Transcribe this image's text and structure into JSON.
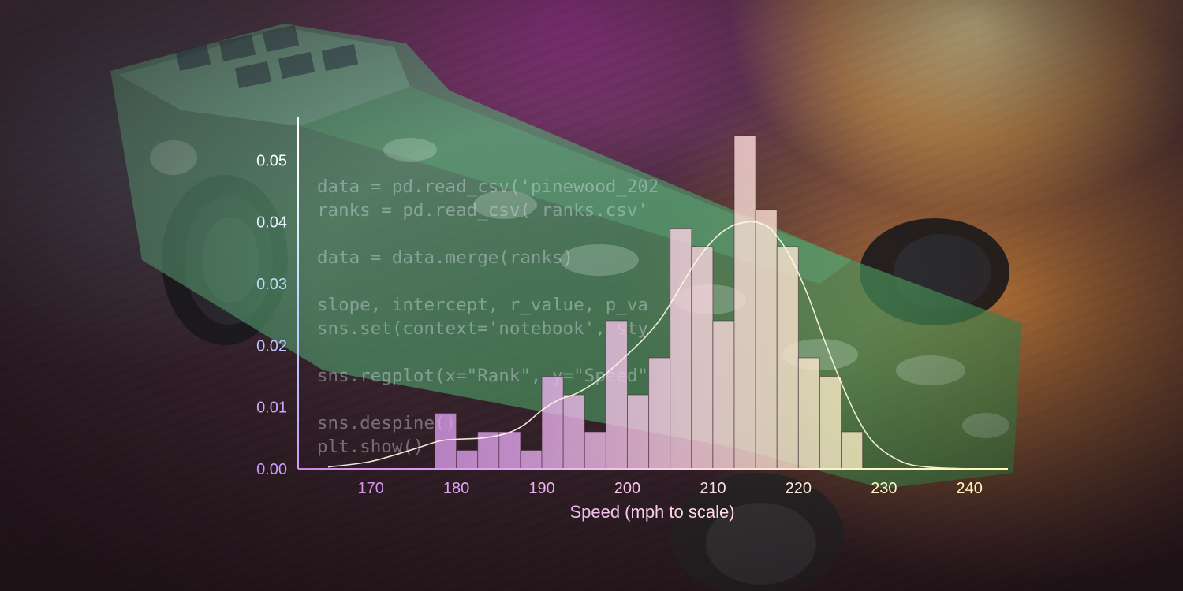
{
  "code_lines": [
    "data = pd.read_csv('pinewood_202",
    "ranks = pd.read_csv('ranks.csv'",
    "",
    "data = data.merge(ranks)",
    "",
    "slope, intercept, r_value, p_va",
    "sns.set(context='notebook', sty",
    "",
    "sns.regplot(x=\"Rank\", y=\"Speed\"",
    "",
    "sns.despine()",
    "plt.show()"
  ],
  "chart_data": {
    "type": "bar",
    "xlabel": "Speed (mph to scale)",
    "ylabel": "",
    "xlim": [
      161.5,
      244.5
    ],
    "ylim": [
      0,
      0.056
    ],
    "xticks": [
      170,
      180,
      190,
      200,
      210,
      220,
      230,
      240
    ],
    "xtick_labels": [
      "170",
      "180",
      "190",
      "200",
      "210",
      "220",
      "230",
      "240"
    ],
    "yticks": [
      0.0,
      0.01,
      0.02,
      0.03,
      0.04,
      0.05
    ],
    "ytick_labels": [
      "0.00",
      "0.01",
      "0.02",
      "0.03",
      "0.04",
      "0.05"
    ],
    "bins": [
      {
        "x0": 177.5,
        "x1": 180.0,
        "value": 0.009
      },
      {
        "x0": 180.0,
        "x1": 182.5,
        "value": 0.003
      },
      {
        "x0": 182.5,
        "x1": 185.0,
        "value": 0.006
      },
      {
        "x0": 185.0,
        "x1": 187.5,
        "value": 0.006
      },
      {
        "x0": 187.5,
        "x1": 190.0,
        "value": 0.003
      },
      {
        "x0": 190.0,
        "x1": 192.5,
        "value": 0.015
      },
      {
        "x0": 192.5,
        "x1": 195.0,
        "value": 0.012
      },
      {
        "x0": 195.0,
        "x1": 197.5,
        "value": 0.006
      },
      {
        "x0": 197.5,
        "x1": 200.0,
        "value": 0.024
      },
      {
        "x0": 200.0,
        "x1": 202.5,
        "value": 0.012
      },
      {
        "x0": 202.5,
        "x1": 205.0,
        "value": 0.018
      },
      {
        "x0": 205.0,
        "x1": 207.5,
        "value": 0.039
      },
      {
        "x0": 207.5,
        "x1": 210.0,
        "value": 0.036
      },
      {
        "x0": 210.0,
        "x1": 212.5,
        "value": 0.024
      },
      {
        "x0": 212.5,
        "x1": 215.0,
        "value": 0.054
      },
      {
        "x0": 215.0,
        "x1": 217.5,
        "value": 0.042
      },
      {
        "x0": 217.5,
        "x1": 220.0,
        "value": 0.036
      },
      {
        "x0": 220.0,
        "x1": 222.5,
        "value": 0.018
      },
      {
        "x0": 222.5,
        "x1": 225.0,
        "value": 0.015
      },
      {
        "x0": 225.0,
        "x1": 227.5,
        "value": 0.006
      },
      {
        "x0": 227.5,
        "x1": 230.0,
        "value": 0.0
      }
    ],
    "kde": {
      "x": [
        165,
        170,
        175,
        178,
        180,
        183,
        186,
        188,
        190,
        192,
        194,
        196,
        198,
        200,
        202,
        204,
        206,
        208,
        210,
        212,
        214,
        215.5,
        217,
        219,
        221,
        223,
        225,
        227,
        229,
        232,
        235,
        240
      ],
      "y": [
        0.0003,
        0.0012,
        0.0032,
        0.0045,
        0.0048,
        0.005,
        0.0058,
        0.0072,
        0.0095,
        0.0112,
        0.0122,
        0.0138,
        0.016,
        0.0185,
        0.0212,
        0.0245,
        0.029,
        0.0335,
        0.037,
        0.0392,
        0.04,
        0.0398,
        0.0385,
        0.0345,
        0.0285,
        0.021,
        0.014,
        0.008,
        0.004,
        0.0012,
        0.0003,
        0.0
      ]
    },
    "grid": false,
    "gradient_colors": [
      "#c98ae8",
      "#e6a8f2",
      "#ffd6e6",
      "#fff3c4",
      "#fff8b8"
    ]
  }
}
